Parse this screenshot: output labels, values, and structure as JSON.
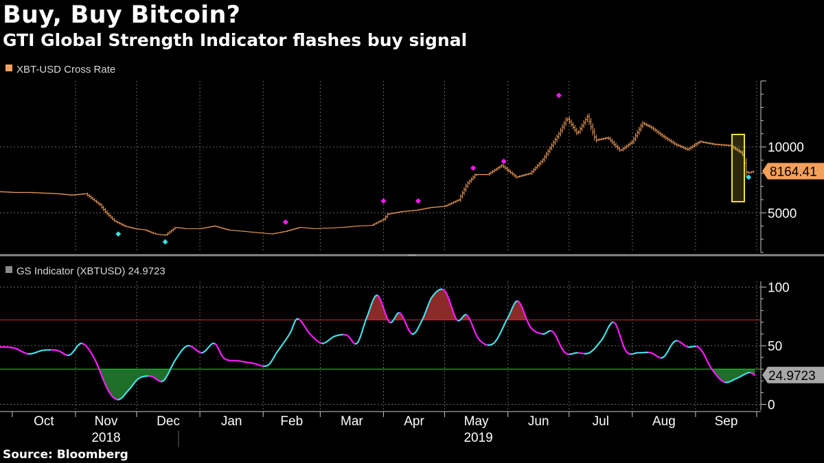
{
  "title": "Buy, Buy Bitcoin?",
  "subtitle": "GTI Global Strength Indicator flashes buy signal",
  "source": "Source: Bloomberg",
  "colors": {
    "price": "#f5a05a",
    "indicator_up": "#44e0ea",
    "indicator_down": "#ff1bff",
    "buy_marker": "#35e0e0",
    "sell_marker": "#ff1bff",
    "overbought_line": "#d92b3a",
    "oversold_line": "#2fd12f",
    "overbought_fill": "#8c2a2a",
    "oversold_fill": "#1f6e2a",
    "highlight_box": "#f0e040",
    "grid": "#6a6a6a"
  },
  "chart_data": [
    {
      "type": "line",
      "legend": "XBT-USD Cross Rate",
      "last_value_label": "8164.41",
      "ylim": [
        2000,
        15000
      ],
      "yticks": [
        5000,
        10000
      ],
      "x": [
        "2018-09-25",
        "2018-10-02",
        "2018-10-09",
        "2018-10-16",
        "2018-10-23",
        "2018-10-30",
        "2018-11-06",
        "2018-11-13",
        "2018-11-16",
        "2018-11-20",
        "2018-11-25",
        "2018-11-30",
        "2018-12-05",
        "2018-12-10",
        "2018-12-15",
        "2018-12-20",
        "2018-12-25",
        "2019-01-01",
        "2019-01-08",
        "2019-01-15",
        "2019-01-22",
        "2019-01-29",
        "2019-02-05",
        "2019-02-12",
        "2019-02-19",
        "2019-02-26",
        "2019-03-05",
        "2019-03-12",
        "2019-03-19",
        "2019-03-26",
        "2019-04-01",
        "2019-04-03",
        "2019-04-10",
        "2019-04-17",
        "2019-04-24",
        "2019-05-01",
        "2019-05-08",
        "2019-05-12",
        "2019-05-16",
        "2019-05-22",
        "2019-05-29",
        "2019-06-05",
        "2019-06-12",
        "2019-06-18",
        "2019-06-22",
        "2019-06-26",
        "2019-06-30",
        "2019-07-05",
        "2019-07-10",
        "2019-07-14",
        "2019-07-20",
        "2019-07-26",
        "2019-08-01",
        "2019-08-06",
        "2019-08-10",
        "2019-08-16",
        "2019-08-22",
        "2019-08-28",
        "2019-09-03",
        "2019-09-10",
        "2019-09-18",
        "2019-09-24",
        "2019-09-26",
        "2019-09-30"
      ],
      "y": [
        6600,
        6550,
        6550,
        6500,
        6450,
        6350,
        6450,
        5600,
        5000,
        4400,
        4000,
        3800,
        3700,
        3400,
        3300,
        3900,
        3800,
        3800,
        4000,
        3700,
        3600,
        3500,
        3400,
        3600,
        3900,
        3800,
        3850,
        3900,
        4000,
        4050,
        4500,
        4900,
        5100,
        5200,
        5400,
        5500,
        6000,
        7200,
        7900,
        7900,
        8600,
        7700,
        8000,
        9000,
        10000,
        11000,
        12200,
        11000,
        12300,
        10500,
        10700,
        9700,
        10400,
        11800,
        11500,
        10800,
        10200,
        9800,
        10400,
        10200,
        10100,
        9500,
        8000,
        8164.41
      ],
      "markers": [
        {
          "date": "2018-11-22",
          "value": 3400,
          "signal": "buy"
        },
        {
          "date": "2018-12-15",
          "value": 2800,
          "signal": "buy"
        },
        {
          "date": "2019-02-12",
          "value": 4300,
          "signal": "sell"
        },
        {
          "date": "2019-04-01",
          "value": 5900,
          "signal": "sell"
        },
        {
          "date": "2019-04-18",
          "value": 5900,
          "signal": "sell"
        },
        {
          "date": "2019-05-15",
          "value": 8400,
          "signal": "sell"
        },
        {
          "date": "2019-05-30",
          "value": 8900,
          "signal": "sell"
        },
        {
          "date": "2019-06-26",
          "value": 13900,
          "signal": "sell"
        },
        {
          "date": "2019-09-27",
          "value": 7700,
          "signal": "buy"
        }
      ]
    },
    {
      "type": "line",
      "legend": "GS Indicator (XBTUSD) 24.9723",
      "last_value_label": "24.9723",
      "ylim": [
        -5,
        105
      ],
      "yticks": [
        0,
        50,
        100
      ],
      "overbought": 72,
      "oversold": 30,
      "x": [
        "2018-09-25",
        "2018-10-02",
        "2018-10-09",
        "2018-10-16",
        "2018-10-23",
        "2018-10-29",
        "2018-11-04",
        "2018-11-10",
        "2018-11-17",
        "2018-11-22",
        "2018-11-27",
        "2018-12-02",
        "2018-12-08",
        "2018-12-14",
        "2018-12-20",
        "2018-12-26",
        "2019-01-02",
        "2019-01-08",
        "2019-01-13",
        "2019-01-20",
        "2019-01-27",
        "2019-02-03",
        "2019-02-08",
        "2019-02-14",
        "2019-02-18",
        "2019-02-24",
        "2019-03-02",
        "2019-03-08",
        "2019-03-14",
        "2019-03-19",
        "2019-03-24",
        "2019-03-29",
        "2019-04-04",
        "2019-04-09",
        "2019-04-15",
        "2019-04-20",
        "2019-04-25",
        "2019-05-01",
        "2019-05-07",
        "2019-05-12",
        "2019-05-18",
        "2019-05-25",
        "2019-06-01",
        "2019-06-06",
        "2019-06-12",
        "2019-06-18",
        "2019-06-23",
        "2019-06-29",
        "2019-07-05",
        "2019-07-11",
        "2019-07-17",
        "2019-07-23",
        "2019-07-29",
        "2019-08-04",
        "2019-08-10",
        "2019-08-16",
        "2019-08-22",
        "2019-08-28",
        "2019-09-03",
        "2019-09-09",
        "2019-09-15",
        "2019-09-21",
        "2019-09-27",
        "2019-09-30"
      ],
      "y": [
        49,
        48,
        43,
        46,
        46,
        42,
        52,
        40,
        12,
        4,
        12,
        22,
        24,
        20,
        38,
        50,
        44,
        52,
        39,
        37,
        35,
        33,
        45,
        60,
        73,
        60,
        52,
        58,
        59,
        52,
        75,
        93,
        70,
        78,
        60,
        72,
        92,
        97,
        72,
        76,
        55,
        52,
        74,
        88,
        66,
        60,
        62,
        44,
        44,
        44,
        55,
        70,
        45,
        44,
        44,
        40,
        54,
        49,
        48,
        30,
        19,
        22,
        27,
        24.9723
      ]
    }
  ],
  "x_axis": {
    "months": [
      "Oct",
      "Nov",
      "Dec",
      "Jan",
      "Feb",
      "Mar",
      "Apr",
      "May",
      "Jun",
      "Jul",
      "Aug",
      "Sep"
    ],
    "years": [
      "2018",
      "2019"
    ]
  }
}
